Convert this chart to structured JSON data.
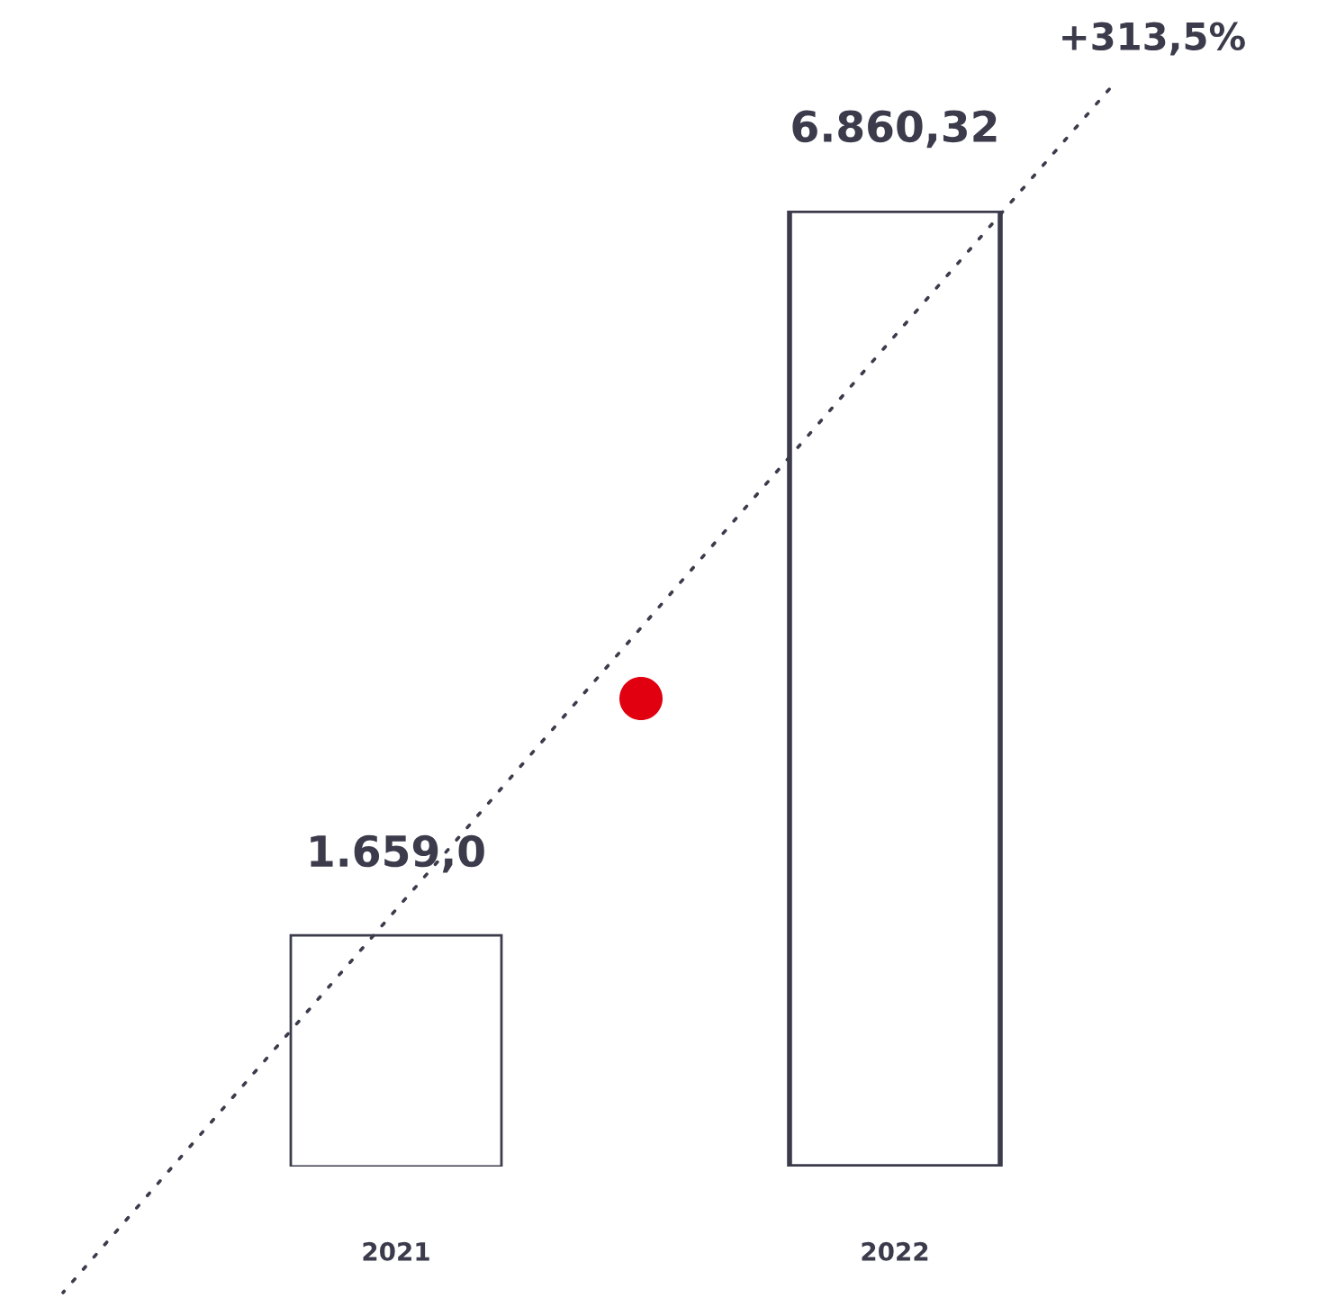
{
  "chart_data": {
    "type": "bar",
    "categories": [
      "2021",
      "2022"
    ],
    "values": [
      1659.0,
      6860.32
    ],
    "colors": [
      "#3b3b4c",
      "#3b3b4c"
    ],
    "value_labels": [
      "1.659,0",
      "6.860,32"
    ],
    "annotations": [
      "+313,5%"
    ]
  }
}
